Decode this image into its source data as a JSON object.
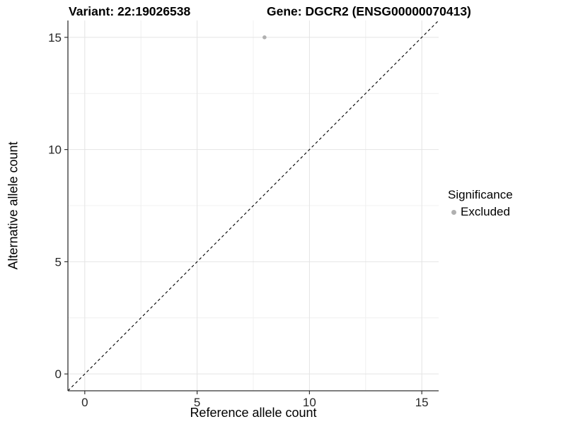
{
  "figure": {
    "titles": {
      "variant": "Variant: 22:19026538",
      "gene": "Gene: DGCR2 (ENSG00000070413)"
    },
    "x_axis_label": "Reference allele count",
    "y_axis_label": "Alternative allele count",
    "legend": {
      "title": "Significance",
      "items": [
        {
          "label": "Excluded",
          "color": "#b0b0b0",
          "shape": "circle"
        }
      ]
    }
  },
  "chart_data": {
    "type": "scatter",
    "title": "Variant: 22:19026538   Gene: DGCR2 (ENSG00000070413)",
    "xlabel": "Reference allele count",
    "ylabel": "Alternative allele count",
    "xlim": [
      -0.75,
      15.75
    ],
    "ylim": [
      -0.75,
      15.75
    ],
    "x_ticks": [
      0,
      5,
      10,
      15
    ],
    "y_ticks": [
      0,
      5,
      10,
      15
    ],
    "x_minor_gridlines": [
      2.5,
      7.5,
      12.5
    ],
    "y_minor_gridlines": [
      2.5,
      7.5,
      12.5
    ],
    "grid": "major and minor gridlines on white background",
    "legend_position": "right",
    "series": [
      {
        "name": "Excluded",
        "color": "#b0b0b0",
        "marker": "circle",
        "points": [
          {
            "x": 8,
            "y": 15
          }
        ]
      }
    ],
    "reference_line": {
      "kind": "identity y=x",
      "x1": -0.75,
      "y1": -0.75,
      "x2": 15.75,
      "y2": 15.75,
      "style": "dashed",
      "color": "#000000"
    }
  },
  "style": {
    "background": "#ffffff",
    "major_grid_color": "#e4e4e4",
    "minor_grid_color": "#f0f0f0",
    "axis_line_color": "#333333",
    "tick_color": "#333333",
    "tick_label_color": "#262626",
    "point_color": "#b0b0b0",
    "reference_line_color": "#000000"
  }
}
